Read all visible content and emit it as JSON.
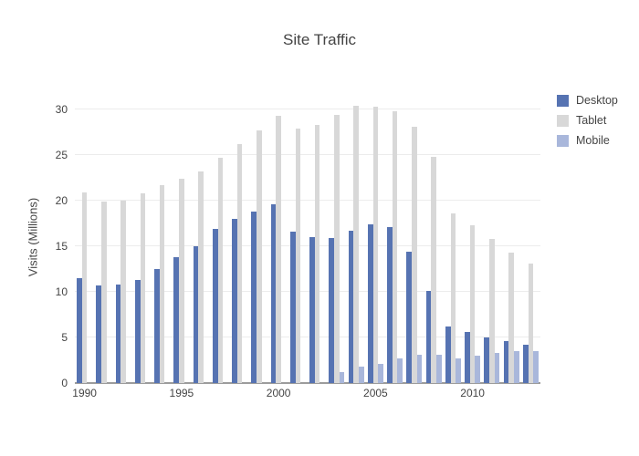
{
  "chart_data": {
    "type": "bar",
    "title": "Site Traffic",
    "xlabel": "",
    "ylabel": "Visits (Millions)",
    "categories": [
      1990,
      1991,
      1992,
      1993,
      1994,
      1995,
      1996,
      1997,
      1998,
      1999,
      2000,
      2001,
      2002,
      2003,
      2004,
      2005,
      2006,
      2007,
      2008,
      2009,
      2010,
      2011,
      2012,
      2013
    ],
    "series": [
      {
        "name": "Desktop",
        "color": "#5673b2",
        "values": [
          11.5,
          10.7,
          10.8,
          11.3,
          12.5,
          13.8,
          15.0,
          16.9,
          18.0,
          18.8,
          19.6,
          16.6,
          16.0,
          15.9,
          16.7,
          17.4,
          17.1,
          14.4,
          10.1,
          6.2,
          5.6,
          5.0,
          4.6,
          4.2
        ]
      },
      {
        "name": "Tablet",
        "color": "#d8d8d8",
        "values": [
          20.9,
          19.9,
          20.0,
          20.8,
          21.7,
          22.4,
          23.2,
          24.7,
          26.2,
          27.7,
          29.3,
          27.9,
          28.3,
          29.4,
          30.4,
          30.3,
          29.8,
          28.1,
          24.8,
          18.6,
          17.3,
          15.8,
          14.3,
          13.1
        ]
      },
      {
        "name": "Mobile",
        "color": "#a9b7db",
        "values": [
          null,
          null,
          null,
          null,
          null,
          null,
          null,
          null,
          null,
          null,
          null,
          null,
          null,
          1.2,
          1.8,
          2.1,
          2.7,
          3.1,
          3.1,
          2.7,
          3.0,
          3.3,
          3.5,
          3.5
        ]
      }
    ],
    "yticks": [
      0,
      5,
      10,
      15,
      20,
      25,
      30
    ],
    "xticks": [
      1990,
      1995,
      2000,
      2005,
      2010
    ],
    "ylim": [
      0,
      32
    ],
    "grid": true,
    "legend_position": "right",
    "colors": {
      "grid": "#ececec",
      "axis": "#9c9c9c",
      "text": "#444444",
      "background": "#ffffff"
    }
  }
}
